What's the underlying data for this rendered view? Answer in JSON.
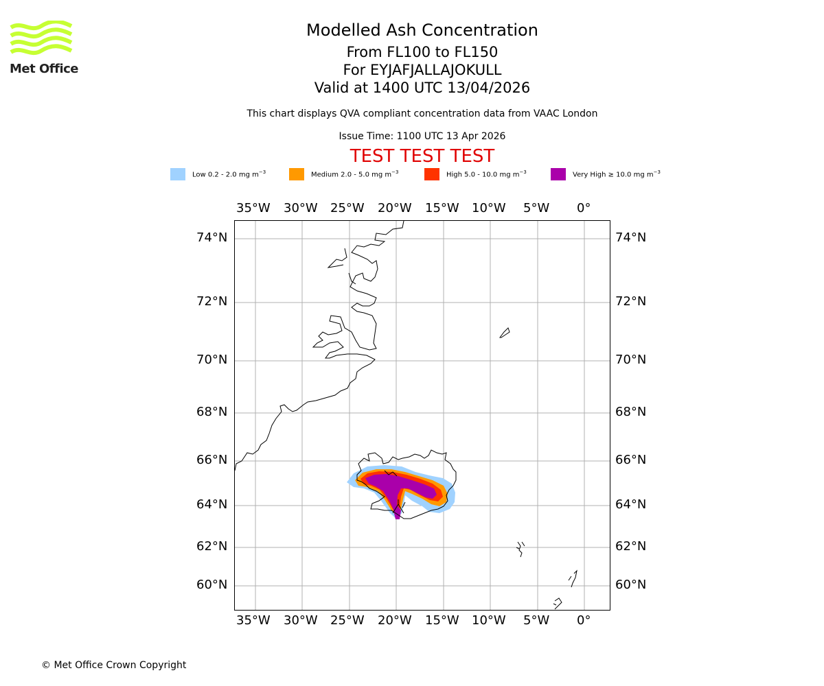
{
  "logo": {
    "text": "Met Office",
    "color": "#c6ff33"
  },
  "header": {
    "title": "Modelled Ash Concentration",
    "levels": "From FL100 to FL150",
    "volcano": "For EYJAFJALLAJOKULL",
    "valid": "Valid at 1400 UTC 13/04/2026",
    "subtitle": "This chart displays QVA compliant concentration data from VAAC London",
    "issue_time": "Issue Time: 1100 UTC 13 Apr 2026",
    "test_banner": "TEST TEST TEST"
  },
  "legend": [
    {
      "label": "Low 0.2 - 2.0 mg m",
      "exp": "−3",
      "color": "#a0d2ff"
    },
    {
      "label": "Medium 2.0 - 5.0 mg m",
      "exp": "−3",
      "color": "#ff9900"
    },
    {
      "label": "High 5.0 - 10.0 mg m",
      "exp": "−3",
      "color": "#ff3300"
    },
    {
      "label": "Very High  ≥  10.0 mg m",
      "exp": "−3",
      "color": "#aa00aa"
    }
  ],
  "map": {
    "lon_labels": [
      "35°W",
      "30°W",
      "25°W",
      "20°W",
      "15°W",
      "10°W",
      "5°W",
      "0°"
    ],
    "lat_labels": [
      "74°N",
      "72°N",
      "70°N",
      "68°N",
      "66°N",
      "64°N",
      "62°N",
      "60°N"
    ]
  },
  "footer": {
    "copyright": "© Met Office Crown Copyright"
  }
}
